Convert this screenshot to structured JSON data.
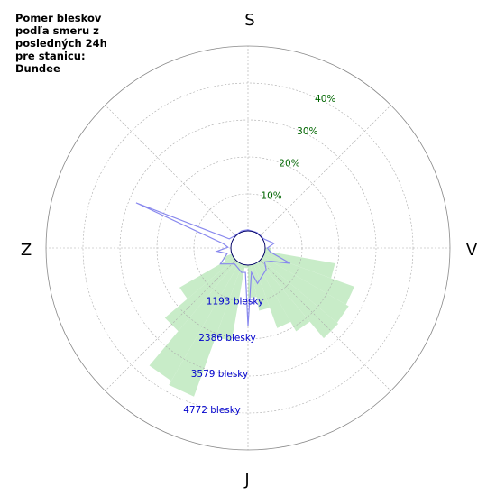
{
  "chart_data": {
    "type": "polar-rose",
    "title_lines": [
      "Pomer bleskov",
      "podľa smeru z",
      "posledných 24h",
      "pre stanicu:",
      "Dundee"
    ],
    "direction_labels": {
      "top": "S",
      "right": "V",
      "bottom": "J",
      "left": "Z"
    },
    "percent_ticks": [
      {
        "value": 10,
        "label": "10%"
      },
      {
        "value": 20,
        "label": "20%"
      },
      {
        "value": 30,
        "label": "30%"
      },
      {
        "value": 40,
        "label": "40%"
      }
    ],
    "count_ticks": [
      {
        "value": 1193,
        "label": "1193 blesky"
      },
      {
        "value": 2386,
        "label": "2386 blesky"
      },
      {
        "value": 3579,
        "label": "3579 blesky"
      },
      {
        "value": 4772,
        "label": "4772 blesky"
      }
    ],
    "percent_max": 50,
    "count_max": 5965,
    "green_bars": {
      "name": "count",
      "color": "#c8ecc8",
      "sector_width_deg": 10,
      "bars": [
        {
          "direction_deg": 95,
          "value": 200
        },
        {
          "direction_deg": 105,
          "value": 2300
        },
        {
          "direction_deg": 115,
          "value": 3100
        },
        {
          "direction_deg": 125,
          "value": 3200
        },
        {
          "direction_deg": 135,
          "value": 3250
        },
        {
          "direction_deg": 145,
          "value": 2550
        },
        {
          "direction_deg": 155,
          "value": 2200
        },
        {
          "direction_deg": 165,
          "value": 1500
        },
        {
          "direction_deg": 175,
          "value": 1050
        },
        {
          "direction_deg": 185,
          "value": 100
        },
        {
          "direction_deg": 195,
          "value": 2500
        },
        {
          "direction_deg": 205,
          "value": 4550
        },
        {
          "direction_deg": 215,
          "value": 4400
        },
        {
          "direction_deg": 225,
          "value": 2950
        },
        {
          "direction_deg": 235,
          "value": 2000
        },
        {
          "direction_deg": 245,
          "value": 300
        }
      ]
    },
    "blue_line": {
      "name": "percent",
      "color": "#8888ee",
      "points": [
        {
          "direction_deg": 0,
          "value": 0.3
        },
        {
          "direction_deg": 30,
          "value": 0.2
        },
        {
          "direction_deg": 60,
          "value": 0.3
        },
        {
          "direction_deg": 80,
          "value": 2.5
        },
        {
          "direction_deg": 90,
          "value": 0.6
        },
        {
          "direction_deg": 100,
          "value": 1.5
        },
        {
          "direction_deg": 110,
          "value": 7.5
        },
        {
          "direction_deg": 120,
          "value": 2.5
        },
        {
          "direction_deg": 130,
          "value": 1.2
        },
        {
          "direction_deg": 140,
          "value": 3
        },
        {
          "direction_deg": 155,
          "value": 4
        },
        {
          "direction_deg": 165,
          "value": 5.3
        },
        {
          "direction_deg": 172,
          "value": 2
        },
        {
          "direction_deg": 180,
          "value": 16.5
        },
        {
          "direction_deg": 186,
          "value": 2
        },
        {
          "direction_deg": 195,
          "value": 2.2
        },
        {
          "direction_deg": 205,
          "value": 1.5
        },
        {
          "direction_deg": 220,
          "value": 1
        },
        {
          "direction_deg": 240,
          "value": 4
        },
        {
          "direction_deg": 255,
          "value": 1.2
        },
        {
          "direction_deg": 264,
          "value": 3.8
        },
        {
          "direction_deg": 272,
          "value": 0.8
        },
        {
          "direction_deg": 280,
          "value": 2.2
        },
        {
          "direction_deg": 292,
          "value": 28
        },
        {
          "direction_deg": 296,
          "value": 1
        },
        {
          "direction_deg": 310,
          "value": 0.3
        },
        {
          "direction_deg": 340,
          "value": 0.3
        }
      ]
    },
    "colors": {
      "percent_label": "#006600",
      "count_label": "#0000cc",
      "grid": "#aaaaaa",
      "outer_ring": "#888888"
    }
  }
}
